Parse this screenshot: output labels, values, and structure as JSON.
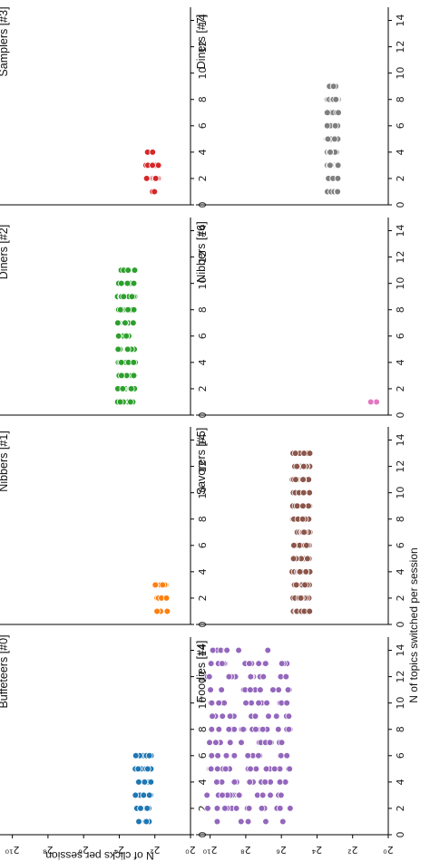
{
  "chart_data": {
    "type": "scatter",
    "orientation": "rotated-90-clockwise",
    "x_axis": {
      "label": "N of topics switched per session",
      "ticks": [
        0,
        2,
        4,
        6,
        8,
        10,
        12,
        14
      ],
      "range": [
        0,
        15
      ]
    },
    "y_axis": {
      "label": "N of clicks per session",
      "scale": "log2",
      "ticks": [
        {
          "exp": 0,
          "label": "2⁰"
        },
        {
          "exp": 2,
          "label": "2²"
        },
        {
          "exp": 4,
          "label": "2⁴"
        },
        {
          "exp": 6,
          "label": "2⁶"
        },
        {
          "exp": 8,
          "label": "2⁸"
        },
        {
          "exp": 10,
          "label": "2¹⁰"
        }
      ],
      "range_exp": [
        0,
        11
      ]
    },
    "panels": [
      {
        "title": "Buffeteers [#0]",
        "color": "#1f77b4",
        "x_range": [
          1,
          6
        ],
        "y_exp_range": [
          2.2,
          3.1
        ],
        "count": 70
      },
      {
        "title": "Nibbers [#1]",
        "color": "#ff7f0e",
        "x_range": [
          1,
          3
        ],
        "y_exp_range": [
          1.3,
          2.0
        ],
        "count": 25
      },
      {
        "title": "Diners [#2]",
        "color": "#2ca02c",
        "x_range": [
          1,
          11
        ],
        "y_exp_range": [
          3.1,
          4.1
        ],
        "count": 170
      },
      {
        "title": "Samplers [#3]",
        "color": "#d62728",
        "x_range": [
          1,
          4
        ],
        "y_exp_range": [
          1.8,
          2.5
        ],
        "count": 35
      },
      {
        "title": "Foodies [#4]",
        "color": "#9467bd",
        "x_range": [
          1,
          14
        ],
        "y_exp_range": [
          5.5,
          10.2
        ],
        "count": 200
      },
      {
        "title": "Savorers [#5]",
        "color": "#8c564b",
        "x_range": [
          1,
          13
        ],
        "y_exp_range": [
          4.4,
          5.4
        ],
        "count": 330
      },
      {
        "title": "Nibbers [#6]",
        "color": "#e377c2",
        "x_range": [
          1,
          1.5
        ],
        "y_exp_range": [
          0.6,
          1.0
        ],
        "count": 4
      },
      {
        "title": "Diners [#7]",
        "color": "#7f7f7f",
        "x_range": [
          1,
          9
        ],
        "y_exp_range": [
          2.8,
          3.5
        ],
        "count": 120
      }
    ]
  }
}
